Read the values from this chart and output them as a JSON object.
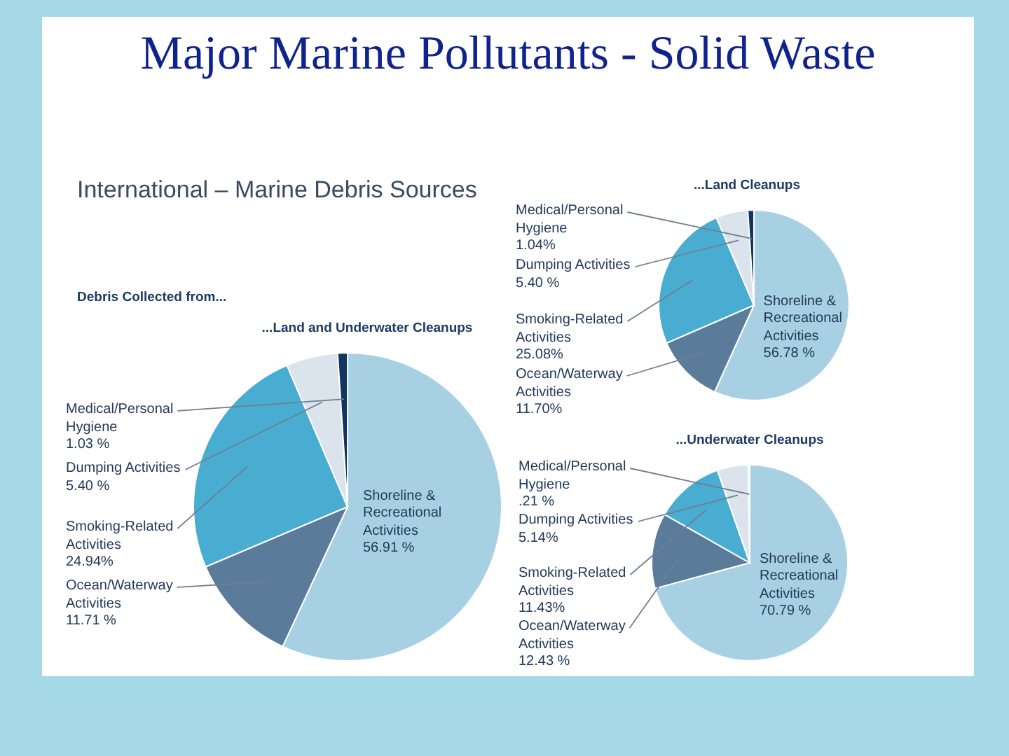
{
  "chart_data": [
    {
      "type": "other",
      "title": "Major Marine Pollutants - Solid Waste"
    },
    {
      "type": "pie",
      "title": "...Land and Underwater Cleanups",
      "annotations": [
        "International – Marine Debris Sources",
        "Debris Collected from..."
      ],
      "categories": [
        "Shoreline & Recreational Activities",
        "Ocean/Waterway Activities",
        "Smoking-Related Activities",
        "Dumping Activities",
        "Medical/Personal Hygiene"
      ],
      "values": [
        56.91,
        11.71,
        24.94,
        5.4,
        1.03
      ],
      "value_labels": [
        "56.91 %",
        "11.71 %",
        "24.94%",
        "5.40 %",
        "1.03 %"
      ],
      "colors": [
        "#a8d0e3",
        "#5b7b9b",
        "#48add1",
        "#dbe3ec",
        "#10355f"
      ]
    },
    {
      "type": "pie",
      "title": "...Land Cleanups",
      "categories": [
        "Shoreline & Recreational Activities",
        "Ocean/Waterway Activities",
        "Smoking-Related Activities",
        "Dumping Activities",
        "Medical/Personal Hygiene"
      ],
      "values": [
        56.78,
        11.7,
        25.08,
        5.4,
        1.04
      ],
      "value_labels": [
        "56.78 %",
        "11.70%",
        "25.08%",
        "5.40 %",
        "1.04%"
      ],
      "colors": [
        "#a8d0e3",
        "#5b7b9b",
        "#48add1",
        "#dbe3ec",
        "#10355f"
      ]
    },
    {
      "type": "pie",
      "title": "...Underwater Cleanups",
      "categories": [
        "Shoreline & Recreational Activities",
        "Ocean/Waterway Activities",
        "Smoking-Related Activities",
        "Dumping Activities",
        "Medical/Personal Hygiene"
      ],
      "values": [
        70.79,
        12.43,
        11.43,
        5.14,
        0.21
      ],
      "value_labels": [
        "70.79 %",
        "12.43 %",
        "11.43%",
        "5.14%",
        ".21 %"
      ],
      "colors": [
        "#a8d0e3",
        "#5b7b9b",
        "#48add1",
        "#dbe3ec",
        "#10355f"
      ]
    }
  ]
}
